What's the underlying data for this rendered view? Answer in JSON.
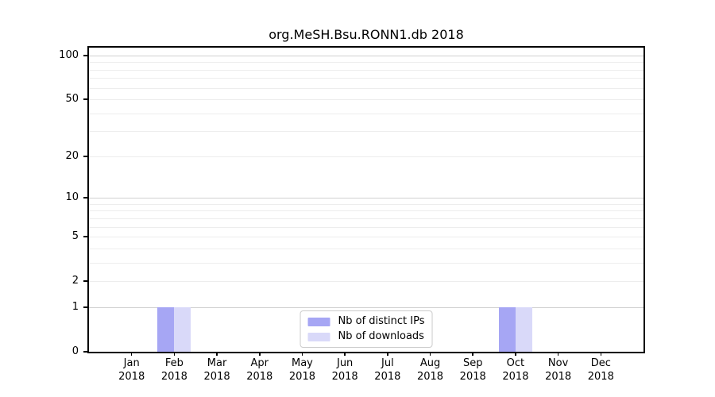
{
  "colors": {
    "distinct_ips": "#a6a6f4",
    "downloads": "#d9d9f9",
    "grid_minor": "#ededed",
    "grid_major": "#d0d0d0",
    "axis": "#000000",
    "legend_border": "#cccccc",
    "background": "#ffffff",
    "text": "#000000"
  },
  "chart_data": {
    "type": "bar",
    "title": "org.MeSH.Bsu.RONN1.db 2018",
    "scale": "log1p",
    "categories": [
      "Jan 2018",
      "Feb 2018",
      "Mar 2018",
      "Apr 2018",
      "May 2018",
      "Jun 2018",
      "Jul 2018",
      "Aug 2018",
      "Sep 2018",
      "Oct 2018",
      "Nov 2018",
      "Dec 2018"
    ],
    "series": [
      {
        "name": "Nb of distinct IPs",
        "values": [
          0,
          1,
          0,
          0,
          0,
          0,
          0,
          0,
          0,
          1,
          0,
          0
        ]
      },
      {
        "name": "Nb of downloads",
        "values": [
          0,
          1,
          0,
          0,
          0,
          0,
          0,
          0,
          0,
          1,
          0,
          0
        ]
      }
    ],
    "yticks": [
      0,
      1,
      2,
      5,
      10,
      20,
      50,
      100
    ],
    "ylim": [
      0,
      113
    ],
    "grid": {
      "minor": [
        2,
        3,
        4,
        5,
        6,
        7,
        8,
        9,
        20,
        30,
        40,
        50,
        60,
        70,
        80,
        90
      ],
      "major": [
        1,
        10,
        100
      ]
    },
    "xlabel": "",
    "ylabel": "",
    "legend_position": "lower center",
    "grid_on": true
  }
}
